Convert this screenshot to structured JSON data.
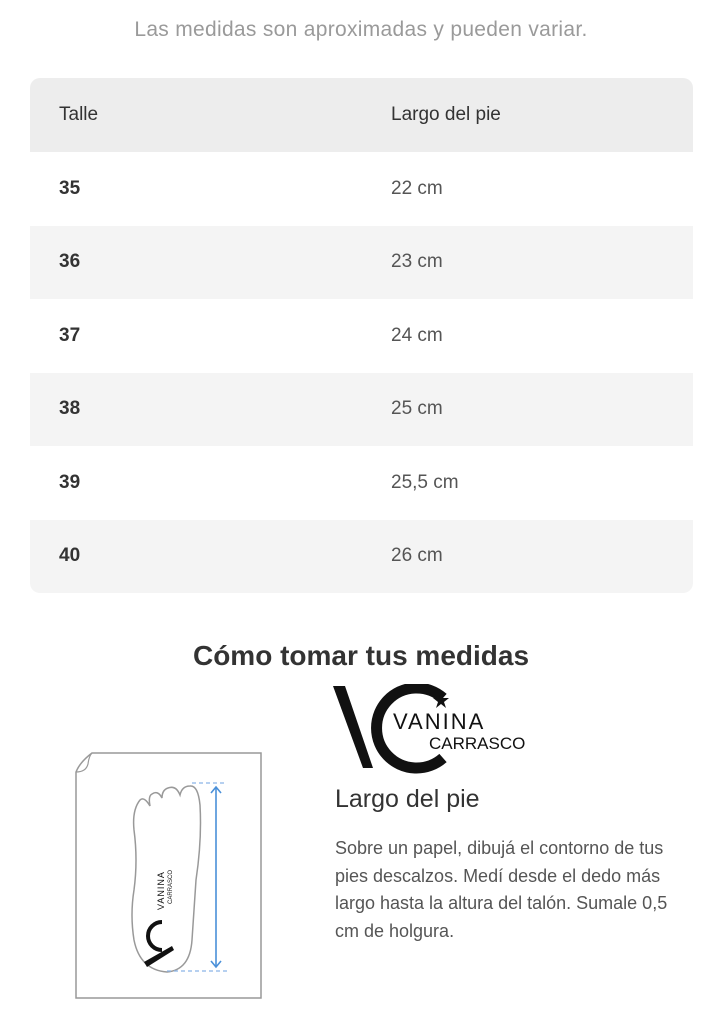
{
  "note": "Las medidas son aproximadas y pueden variar.",
  "table": {
    "headers": [
      "Talle",
      "Largo del pie"
    ],
    "rows": [
      {
        "size": "35",
        "length": "22 cm"
      },
      {
        "size": "36",
        "length": "23 cm"
      },
      {
        "size": "37",
        "length": "24 cm"
      },
      {
        "size": "38",
        "length": "25 cm"
      },
      {
        "size": "39",
        "length": "25,5 cm"
      },
      {
        "size": "40",
        "length": "26 cm"
      }
    ]
  },
  "guide": {
    "title": "Cómo tomar tus medidas",
    "logo_text": [
      "VANINA",
      "CARRASCO"
    ],
    "subtitle": "Largo del pie",
    "description": "Sobre un papel, dibujá el contorno de tus pies descalzos. Medí desde el dedo más largo hasta la altura del talón. Sumale 0,5 cm de holgura."
  },
  "colors": {
    "header_bg": "#ededed",
    "stripe_bg": "#f4f4f4",
    "arrow": "#4a90d9"
  }
}
